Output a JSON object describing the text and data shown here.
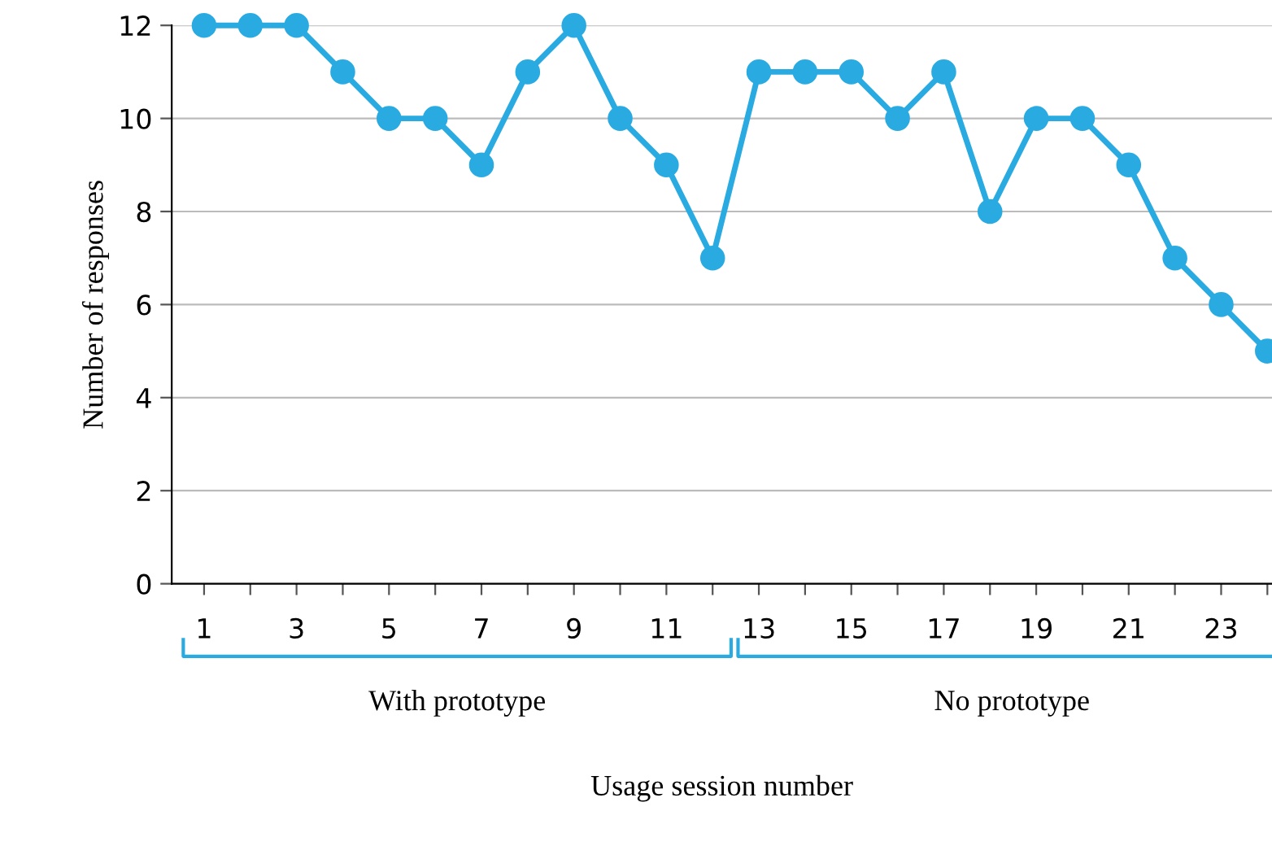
{
  "chart_data": {
    "type": "line",
    "xlabel": "Usage session number",
    "ylabel": "Number of responses",
    "x": [
      1,
      2,
      3,
      4,
      5,
      6,
      7,
      8,
      9,
      10,
      11,
      12,
      13,
      14,
      15,
      16,
      17,
      18,
      19,
      20,
      21,
      22,
      23,
      24
    ],
    "series": [
      {
        "color": "#29abe2",
        "values": [
          12,
          12,
          12,
          11,
          10,
          10,
          9,
          11,
          12,
          10,
          9,
          7,
          11,
          11,
          11,
          10,
          11,
          8,
          10,
          10,
          9,
          7,
          6,
          5
        ]
      }
    ],
    "xlim": [
      0.3,
      24.1
    ],
    "ylim": [
      0,
      12
    ],
    "xticks": [
      1,
      {
        "value": 2,
        "label": null
      },
      3,
      {
        "value": 4,
        "label": null
      },
      5,
      {
        "value": 6,
        "label": null
      },
      7,
      {
        "value": 8,
        "label": null
      },
      9,
      {
        "value": 10,
        "label": null
      },
      11,
      {
        "value": 12,
        "label": null
      },
      13,
      {
        "value": 14,
        "label": null
      },
      15,
      {
        "value": 16,
        "label": null
      },
      17,
      {
        "value": 18,
        "label": null
      },
      19,
      {
        "value": 20,
        "label": null
      },
      21,
      {
        "value": 22,
        "label": null
      },
      23,
      {
        "value": 24,
        "label": null
      }
    ],
    "yticks": [
      0,
      2,
      4,
      6,
      8,
      10,
      12
    ],
    "grid": "y",
    "marker": "circle",
    "line_style": "solid",
    "legend": false,
    "annotations": [
      "With prototype",
      "No prototype"
    ]
  }
}
